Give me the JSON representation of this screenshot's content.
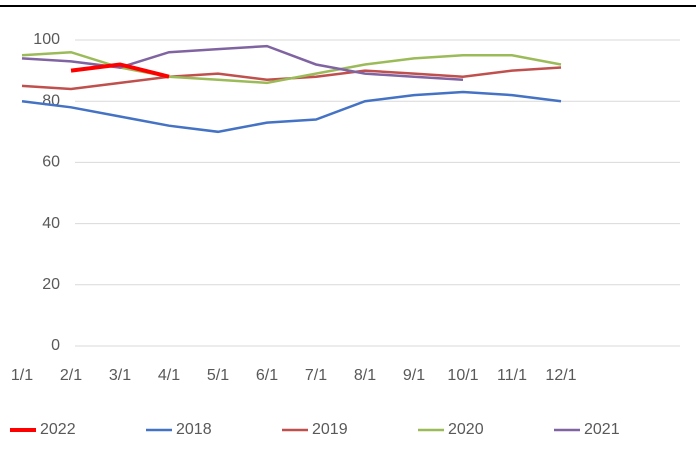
{
  "chart_data": {
    "type": "line",
    "categories": [
      "1/1",
      "2/1",
      "3/1",
      "4/1",
      "5/1",
      "6/1",
      "7/1",
      "8/1",
      "9/1",
      "10/1",
      "11/1",
      "12/1"
    ],
    "series": [
      {
        "name": "2018",
        "color": "#4472c4",
        "values": [
          80,
          78,
          75,
          72,
          70,
          73,
          74,
          80,
          82,
          83,
          82,
          80
        ]
      },
      {
        "name": "2019",
        "color": "#c0504d",
        "values": [
          85,
          84,
          86,
          88,
          89,
          87,
          88,
          90,
          89,
          88,
          90,
          91
        ]
      },
      {
        "name": "2020",
        "color": "#9bbb59",
        "values": [
          95,
          96,
          91,
          88,
          87,
          86,
          89,
          92,
          94,
          95,
          95,
          92
        ]
      },
      {
        "name": "2021",
        "color": "#8064a2",
        "values": [
          94,
          93,
          91,
          96,
          97,
          98,
          92,
          89,
          88,
          87,
          null,
          null
        ]
      },
      {
        "name": "2022",
        "color": "#ff0000",
        "values": [
          null,
          90,
          92,
          88,
          null,
          null,
          null,
          null,
          null,
          null,
          null,
          null
        ]
      }
    ],
    "ylim": [
      0,
      100
    ],
    "yticks": [
      0,
      20,
      40,
      60,
      80,
      100
    ],
    "grid": true
  }
}
